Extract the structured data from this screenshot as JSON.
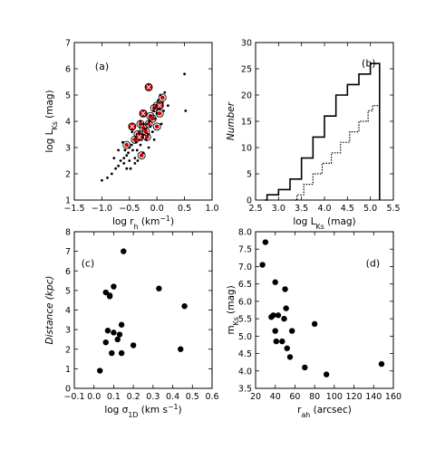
{
  "chart_data": [
    {
      "type": "scatter",
      "panel_label": "(a)",
      "xlabel": "log r_h (km^-1)",
      "ylabel": "log L_Ks (mag)",
      "xlim": [
        -1.5,
        1.0
      ],
      "ylim": [
        1,
        7
      ],
      "xticks": [
        -1.5,
        -1.0,
        -0.5,
        0.0,
        0.5,
        1.0
      ],
      "xtick_labels": [
        "−1.5",
        "−1.0",
        "−0.5",
        "0.0",
        "0.5",
        "1.0"
      ],
      "yticks": [
        1,
        2,
        3,
        4,
        5,
        6,
        7
      ],
      "ytick_labels": [
        "1",
        "2",
        "3",
        "4",
        "5",
        "6",
        "7"
      ],
      "series": [
        {
          "marker": "dot",
          "color": "#000000",
          "points": [
            [
              -1.0,
              1.75
            ],
            [
              -0.9,
              1.85
            ],
            [
              -0.82,
              2.0
            ],
            [
              -0.75,
              2.2
            ],
            [
              -0.7,
              2.3
            ],
            [
              -0.66,
              2.5
            ],
            [
              -0.6,
              2.4
            ],
            [
              -0.6,
              2.6
            ],
            [
              -0.58,
              2.9
            ],
            [
              -0.55,
              2.7
            ],
            [
              -0.52,
              2.8
            ],
            [
              -0.5,
              3.0
            ],
            [
              -0.5,
              2.5
            ],
            [
              -0.48,
              2.2
            ],
            [
              -0.46,
              3.1
            ],
            [
              -0.44,
              2.9
            ],
            [
              -0.42,
              3.3
            ],
            [
              -0.4,
              2.6
            ],
            [
              -0.38,
              3.2
            ],
            [
              -0.36,
              2.9
            ],
            [
              -0.34,
              3.4
            ],
            [
              -0.32,
              3.6
            ],
            [
              -0.3,
              3.1
            ],
            [
              -0.28,
              3.3
            ],
            [
              -0.26,
              3.5
            ],
            [
              -0.25,
              2.8
            ],
            [
              -0.22,
              3.7
            ],
            [
              -0.2,
              3.3
            ],
            [
              -0.18,
              3.9
            ],
            [
              -0.16,
              3.5
            ],
            [
              -0.14,
              4.0
            ],
            [
              -0.12,
              3.8
            ],
            [
              -0.1,
              4.2
            ],
            [
              -0.08,
              3.6
            ],
            [
              -0.06,
              4.4
            ],
            [
              -0.04,
              4.1
            ],
            [
              -0.02,
              4.6
            ],
            [
              0.0,
              4.3
            ],
            [
              0.02,
              4.8
            ],
            [
              0.04,
              4.5
            ],
            [
              0.06,
              5.0
            ],
            [
              0.1,
              4.7
            ],
            [
              0.14,
              5.1
            ],
            [
              0.2,
              4.6
            ],
            [
              -0.7,
              2.9
            ],
            [
              -0.62,
              3.2
            ],
            [
              -0.45,
              3.6
            ],
            [
              -0.35,
              2.5
            ],
            [
              -0.15,
              3.0
            ],
            [
              -0.05,
              3.3
            ],
            [
              0.08,
              3.9
            ],
            [
              -0.3,
              4.0
            ],
            [
              -0.2,
              4.3
            ],
            [
              0.5,
              5.8
            ],
            [
              0.52,
              4.4
            ],
            [
              -0.55,
              2.2
            ],
            [
              -0.78,
              2.6
            ],
            [
              -0.4,
              2.4
            ],
            [
              -0.25,
              3.9
            ],
            [
              0.12,
              4.4
            ]
          ]
        },
        {
          "marker": "circled-red",
          "color": "#cc0000",
          "points": [
            [
              -0.55,
              3.1
            ],
            [
              -0.4,
              3.3
            ],
            [
              -0.35,
              3.5
            ],
            [
              -0.3,
              3.9
            ],
            [
              -0.25,
              3.75
            ],
            [
              -0.2,
              3.6
            ],
            [
              -0.15,
              3.9
            ],
            [
              -0.12,
              4.2
            ],
            [
              -0.08,
              4.1
            ],
            [
              -0.05,
              4.5
            ],
            [
              0.0,
              4.6
            ],
            [
              0.05,
              4.3
            ],
            [
              0.1,
              4.9
            ],
            [
              -0.18,
              3.4
            ],
            [
              -0.28,
              2.7
            ],
            [
              0.0,
              3.8
            ]
          ]
        },
        {
          "marker": "crossed-red",
          "color": "#cc0000",
          "points": [
            [
              -0.15,
              5.3
            ],
            [
              -0.25,
              4.3
            ],
            [
              0.05,
              4.6
            ],
            [
              -0.45,
              3.8
            ],
            [
              -0.32,
              3.4
            ]
          ]
        }
      ]
    },
    {
      "type": "step",
      "panel_label": "(b)",
      "xlabel": "log L_Ks (mag)",
      "ylabel": "Number",
      "xlim": [
        2.5,
        5.5
      ],
      "ylim": [
        0,
        30
      ],
      "xticks": [
        2.5,
        3.0,
        3.5,
        4.0,
        4.5,
        5.0,
        5.5
      ],
      "xtick_labels": [
        "2.5",
        "3.0",
        "3.5",
        "4.0",
        "4.5",
        "5.0",
        "5.5"
      ],
      "yticks": [
        0,
        5,
        10,
        15,
        20,
        25,
        30
      ],
      "ytick_labels": [
        "0",
        "5",
        "10",
        "15",
        "20",
        "25",
        "30"
      ],
      "series": [
        {
          "style": "solid",
          "x": [
            2.7,
            2.75,
            3.0,
            3.25,
            3.5,
            3.75,
            4.0,
            4.25,
            4.5,
            4.75,
            5.0,
            5.2
          ],
          "y": [
            0,
            1,
            2,
            4,
            8,
            12,
            16,
            20,
            22,
            24,
            26,
            0
          ]
        },
        {
          "style": "dotted",
          "x": [
            3.35,
            3.4,
            3.55,
            3.75,
            3.95,
            4.15,
            4.35,
            4.55,
            4.75,
            4.95,
            5.05,
            5.2
          ],
          "y": [
            0,
            1,
            3,
            5,
            7,
            9,
            11,
            13,
            15,
            17,
            18,
            0
          ]
        }
      ]
    },
    {
      "type": "scatter",
      "panel_label": "(c)",
      "xlabel": "log σ_1D (km s^-1)",
      "ylabel": "Distance (kpc)",
      "xlim": [
        -0.1,
        0.6
      ],
      "ylim": [
        0,
        8
      ],
      "xticks": [
        -0.1,
        0.0,
        0.1,
        0.2,
        0.3,
        0.4,
        0.5,
        0.6
      ],
      "xtick_labels": [
        "−0.1",
        "0.0",
        "0.1",
        "0.2",
        "0.3",
        "0.4",
        "0.5",
        "0.6"
      ],
      "yticks": [
        0,
        1,
        2,
        3,
        4,
        5,
        6,
        7,
        8
      ],
      "ytick_labels": [
        "0",
        "1",
        "2",
        "3",
        "4",
        "5",
        "6",
        "7",
        "8"
      ],
      "points": [
        [
          0.03,
          0.9
        ],
        [
          0.06,
          2.35
        ],
        [
          0.06,
          4.9
        ],
        [
          0.07,
          2.95
        ],
        [
          0.08,
          4.75
        ],
        [
          0.08,
          4.7
        ],
        [
          0.09,
          1.8
        ],
        [
          0.1,
          2.85
        ],
        [
          0.1,
          5.2
        ],
        [
          0.12,
          2.5
        ],
        [
          0.13,
          2.75
        ],
        [
          0.14,
          1.8
        ],
        [
          0.14,
          3.25
        ],
        [
          0.15,
          7.0
        ],
        [
          0.2,
          2.2
        ],
        [
          0.33,
          5.1
        ],
        [
          0.44,
          2.0
        ],
        [
          0.46,
          4.2
        ]
      ]
    },
    {
      "type": "scatter",
      "panel_label": "(d)",
      "xlabel": "r_ah (arcsec)",
      "ylabel": "m_Ks (mag)",
      "xlim": [
        20,
        160
      ],
      "ylim": [
        3.5,
        8.0
      ],
      "xticks": [
        20,
        40,
        60,
        80,
        100,
        120,
        140,
        160
      ],
      "xtick_labels": [
        "20",
        "40",
        "60",
        "80",
        "100",
        "120",
        "140",
        "160"
      ],
      "yticks": [
        3.5,
        4.0,
        4.5,
        5.0,
        5.5,
        6.0,
        6.5,
        7.0,
        7.5,
        8.0
      ],
      "ytick_labels": [
        "3.5",
        "4.0",
        "4.5",
        "5.0",
        "5.5",
        "6.0",
        "6.5",
        "7.0",
        "7.5",
        "8.0"
      ],
      "points": [
        [
          27,
          7.05
        ],
        [
          30,
          7.7
        ],
        [
          36,
          5.55
        ],
        [
          38,
          5.6
        ],
        [
          40,
          5.15
        ],
        [
          40,
          6.55
        ],
        [
          41,
          4.85
        ],
        [
          43,
          5.6
        ],
        [
          47,
          4.85
        ],
        [
          49,
          5.5
        ],
        [
          50,
          6.35
        ],
        [
          51,
          5.8
        ],
        [
          52,
          4.65
        ],
        [
          55,
          4.4
        ],
        [
          57,
          5.15
        ],
        [
          70,
          4.1
        ],
        [
          80,
          5.35
        ],
        [
          92,
          3.9
        ],
        [
          148,
          4.2
        ]
      ]
    }
  ]
}
